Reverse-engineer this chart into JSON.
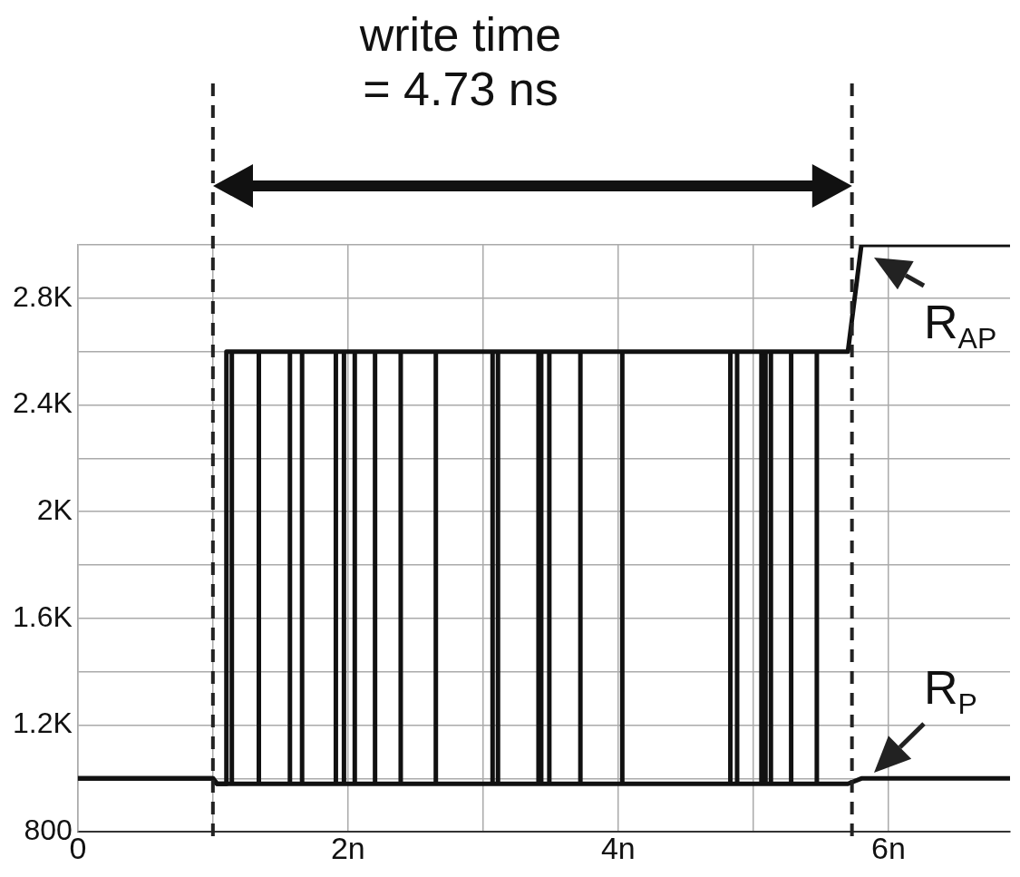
{
  "chart_data": {
    "type": "line",
    "title": "write time\n= 4.73 ns",
    "xlim": [
      0,
      6.9
    ],
    "xticks": [
      0,
      {
        "value": 1,
        "label": null
      },
      {
        "value": 2,
        "label": "2n"
      },
      {
        "value": 3,
        "label": null
      },
      {
        "value": 4,
        "label": "4n"
      },
      {
        "value": 5,
        "label": null
      },
      {
        "value": 6,
        "label": "6n"
      }
    ],
    "ylim": [
      800,
      3000
    ],
    "yticks": [
      800,
      {
        "value": 1000,
        "label": null
      },
      {
        "value": 1200,
        "label": "1.2K"
      },
      {
        "value": 1400,
        "label": null
      },
      {
        "value": 1600,
        "label": "1.6K"
      },
      {
        "value": 1800,
        "label": null
      },
      {
        "value": 2000,
        "label": "2K"
      },
      {
        "value": 2200,
        "label": null
      },
      {
        "value": 2400,
        "label": "2.4K"
      },
      {
        "value": 2600,
        "label": null
      },
      {
        "value": 2800,
        "label": "2.8K"
      },
      {
        "value": 3000,
        "label": null
      }
    ],
    "grid": true,
    "legend": false,
    "marker": "none",
    "line_style": "solid",
    "series": [
      {
        "name": "R$_{AP}$",
        "color": "#111111",
        "x": [
          0,
          1.0,
          1.03,
          1.1,
          1.1,
          5.7,
          5.8,
          6.9
        ],
        "values": [
          1000,
          1000,
          980,
          980,
          2600,
          2600,
          3000,
          3000
        ]
      },
      {
        "name": "R$_{P}$",
        "color": "#111111",
        "x": [
          0,
          1.0,
          1.03,
          5.7,
          5.8,
          6.9
        ],
        "values": [
          1000,
          1000,
          980,
          980,
          1000,
          1000
        ]
      },
      {
        "color": "#111111",
        "x": [
          1.14,
          1.14,
          null,
          1.34,
          1.34,
          null,
          1.57,
          1.57,
          null,
          1.66,
          1.66,
          null,
          1.91,
          1.91,
          null,
          1.97,
          1.97,
          null,
          2.05,
          2.05,
          null,
          2.2,
          2.2,
          null,
          2.39,
          2.39,
          null,
          2.65,
          2.65,
          null,
          3.07,
          3.07,
          null,
          3.11,
          3.11,
          null,
          3.41,
          3.41,
          null,
          3.43,
          3.43,
          null,
          3.49,
          3.49,
          null,
          3.72,
          3.72,
          null,
          4.03,
          4.03,
          null,
          4.83,
          4.83,
          null,
          4.88,
          4.88,
          null,
          5.06,
          5.06,
          null,
          5.09,
          5.09,
          null,
          5.13,
          5.13,
          null,
          5.28,
          5.28,
          null,
          5.47,
          5.47
        ],
        "values": [
          980,
          2600,
          null,
          980,
          2600,
          null,
          980,
          2600,
          null,
          980,
          2600,
          null,
          980,
          2600,
          null,
          980,
          2600,
          null,
          980,
          2600,
          null,
          980,
          2600,
          null,
          980,
          2600,
          null,
          980,
          2600,
          null,
          980,
          2600,
          null,
          980,
          2600,
          null,
          980,
          2600,
          null,
          980,
          2600,
          null,
          980,
          2600,
          null,
          980,
          2600,
          null,
          980,
          2600,
          null,
          980,
          2600,
          null,
          980,
          2600,
          null,
          980,
          2600,
          null,
          980,
          2600,
          null,
          980,
          2600,
          null,
          980,
          2600,
          null,
          980,
          2600
        ]
      }
    ],
    "ref_lines": [
      {
        "axis": "x",
        "value": 1.0,
        "color": "#222222",
        "line_style": "dashed"
      },
      {
        "axis": "x",
        "value": 5.73,
        "color": "#222222",
        "line_style": "dashed"
      }
    ]
  }
}
